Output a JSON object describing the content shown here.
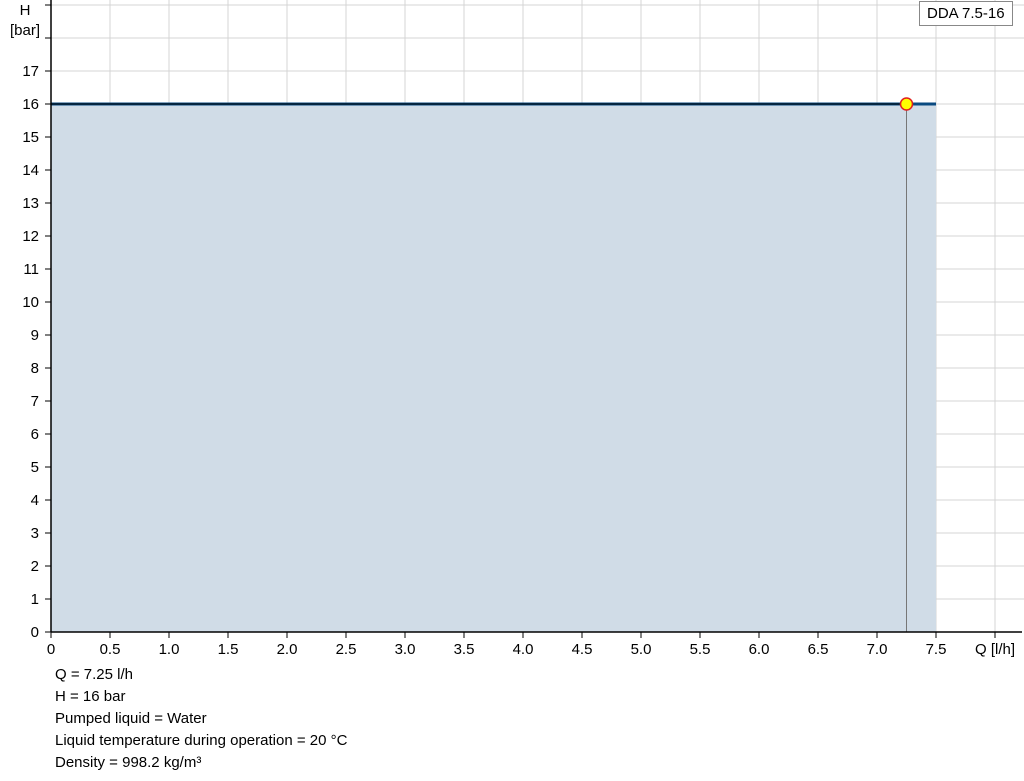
{
  "chart_data": {
    "type": "area",
    "title": "",
    "xlabel": "Q [l/h]",
    "ylabel_line1": "H",
    "ylabel_line2": "[bar]",
    "xlim": [
      0,
      8.5
    ],
    "ylim": [
      0,
      19
    ],
    "x_ticks": [
      "0",
      "0.5",
      "1.0",
      "1.5",
      "2.0",
      "2.5",
      "3.0",
      "3.5",
      "4.0",
      "4.5",
      "5.0",
      "5.5",
      "6.0",
      "6.5",
      "7.0",
      "7.5"
    ],
    "y_ticks": [
      "0",
      "1",
      "2",
      "3",
      "4",
      "5",
      "6",
      "7",
      "8",
      "9",
      "10",
      "11",
      "12",
      "13",
      "14",
      "15",
      "16",
      "17"
    ],
    "grid": true,
    "series": [
      {
        "name": "DDA 7.5-16",
        "x": [
          0,
          7.5
        ],
        "y": [
          16,
          16
        ],
        "color": "#0a4a80",
        "fill": "#d0dce7"
      }
    ],
    "operating_point": {
      "x": 7.25,
      "y": 16,
      "color": "#ffff00",
      "stroke": "#e02020"
    },
    "legend": {
      "label": "DDA 7.5-16",
      "placement": "top-right"
    }
  },
  "info": [
    "Q = 7.25 l/h",
    "H = 16 bar",
    "Pumped liquid = Water",
    "Liquid temperature during operation = 20 °C",
    "Density = 998.2 kg/m³"
  ]
}
